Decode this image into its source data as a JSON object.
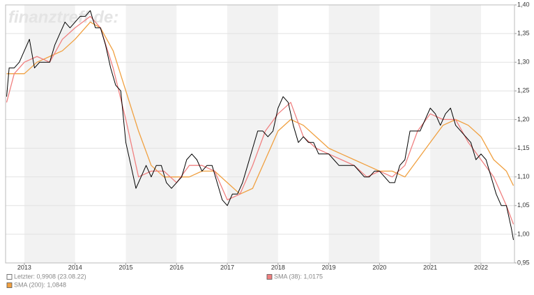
{
  "chart_data": {
    "type": "line",
    "watermark": "finanztreff.de:",
    "xlim": [
      2012.63,
      2022.66
    ],
    "xticks": [
      2013,
      2014,
      2015,
      2016,
      2017,
      2018,
      2019,
      2020,
      2021,
      2022
    ],
    "ylim": [
      0.95,
      1.4
    ],
    "yticks": [
      {
        "value": 0.95,
        "label": "0,95"
      },
      {
        "value": 1.0,
        "label": "1,00"
      },
      {
        "value": 1.05,
        "label": "1,05"
      },
      {
        "value": 1.1,
        "label": "1,10"
      },
      {
        "value": 1.15,
        "label": "1,15"
      },
      {
        "value": 1.2,
        "label": "1,20"
      },
      {
        "value": 1.25,
        "label": "1,25"
      },
      {
        "value": 1.3,
        "label": "1,30"
      },
      {
        "value": 1.35,
        "label": "1,35"
      },
      {
        "value": 1.4,
        "label": "1,40"
      }
    ],
    "grid": true,
    "series": [
      {
        "name": "Letzter: 0,9908 (23.08.22)",
        "color": "#000000",
        "legend_color": "#ffffff",
        "x": [
          2012.65,
          2012.7,
          2012.8,
          2012.9,
          2013.0,
          2013.1,
          2013.2,
          2013.3,
          2013.4,
          2013.5,
          2013.6,
          2013.7,
          2013.8,
          2013.9,
          2014.0,
          2014.1,
          2014.2,
          2014.3,
          2014.4,
          2014.5,
          2014.6,
          2014.7,
          2014.8,
          2014.9,
          2015.0,
          2015.1,
          2015.2,
          2015.3,
          2015.4,
          2015.5,
          2015.6,
          2015.7,
          2015.8,
          2015.9,
          2016.0,
          2016.1,
          2016.2,
          2016.3,
          2016.4,
          2016.5,
          2016.6,
          2016.7,
          2016.8,
          2016.9,
          2017.0,
          2017.1,
          2017.2,
          2017.3,
          2017.4,
          2017.5,
          2017.6,
          2017.7,
          2017.8,
          2017.9,
          2018.0,
          2018.1,
          2018.2,
          2018.3,
          2018.4,
          2018.5,
          2018.6,
          2018.7,
          2018.8,
          2018.9,
          2019.0,
          2019.1,
          2019.2,
          2019.3,
          2019.4,
          2019.5,
          2019.6,
          2019.7,
          2019.8,
          2019.9,
          2020.0,
          2020.1,
          2020.2,
          2020.3,
          2020.4,
          2020.5,
          2020.6,
          2020.7,
          2020.8,
          2020.9,
          2021.0,
          2021.1,
          2021.2,
          2021.3,
          2021.4,
          2021.5,
          2021.6,
          2021.7,
          2021.8,
          2021.9,
          2022.0,
          2022.1,
          2022.2,
          2022.3,
          2022.4,
          2022.5,
          2022.6,
          2022.64
        ],
        "values": [
          1.24,
          1.29,
          1.29,
          1.3,
          1.32,
          1.34,
          1.29,
          1.3,
          1.3,
          1.3,
          1.33,
          1.35,
          1.37,
          1.36,
          1.37,
          1.38,
          1.38,
          1.39,
          1.36,
          1.36,
          1.33,
          1.29,
          1.26,
          1.25,
          1.16,
          1.12,
          1.08,
          1.1,
          1.12,
          1.1,
          1.12,
          1.12,
          1.09,
          1.08,
          1.09,
          1.1,
          1.13,
          1.14,
          1.13,
          1.11,
          1.12,
          1.12,
          1.09,
          1.06,
          1.05,
          1.07,
          1.07,
          1.09,
          1.12,
          1.15,
          1.18,
          1.18,
          1.17,
          1.18,
          1.22,
          1.24,
          1.23,
          1.19,
          1.16,
          1.17,
          1.16,
          1.16,
          1.14,
          1.14,
          1.14,
          1.13,
          1.12,
          1.12,
          1.12,
          1.12,
          1.11,
          1.1,
          1.1,
          1.11,
          1.11,
          1.1,
          1.09,
          1.09,
          1.12,
          1.13,
          1.18,
          1.18,
          1.18,
          1.2,
          1.22,
          1.21,
          1.19,
          1.21,
          1.22,
          1.19,
          1.18,
          1.17,
          1.16,
          1.13,
          1.14,
          1.13,
          1.1,
          1.07,
          1.05,
          1.05,
          1.01,
          0.99
        ]
      },
      {
        "name": "SMA (38): 1,0175",
        "color": "#f08080",
        "x": [
          2012.65,
          2012.8,
          2013.0,
          2013.25,
          2013.5,
          2013.75,
          2014.0,
          2014.3,
          2014.5,
          2014.75,
          2015.0,
          2015.25,
          2015.5,
          2015.75,
          2016.0,
          2016.25,
          2016.5,
          2016.75,
          2017.0,
          2017.25,
          2017.5,
          2017.75,
          2018.0,
          2018.25,
          2018.5,
          2018.75,
          2019.0,
          2019.25,
          2019.5,
          2019.75,
          2020.0,
          2020.25,
          2020.5,
          2020.75,
          2021.0,
          2021.25,
          2021.5,
          2021.75,
          2022.0,
          2022.25,
          2022.5,
          2022.64
        ],
        "values": [
          1.23,
          1.28,
          1.3,
          1.31,
          1.3,
          1.34,
          1.36,
          1.38,
          1.36,
          1.29,
          1.2,
          1.1,
          1.11,
          1.11,
          1.09,
          1.12,
          1.12,
          1.11,
          1.06,
          1.07,
          1.12,
          1.18,
          1.21,
          1.23,
          1.17,
          1.15,
          1.14,
          1.13,
          1.12,
          1.1,
          1.11,
          1.1,
          1.12,
          1.18,
          1.21,
          1.2,
          1.2,
          1.16,
          1.13,
          1.1,
          1.05,
          1.0175
        ]
      },
      {
        "name": "SMA (200): 1,0848",
        "color": "#f0a040",
        "x": [
          2012.65,
          2013.0,
          2013.25,
          2013.5,
          2013.75,
          2014.0,
          2014.3,
          2014.5,
          2014.75,
          2015.0,
          2015.25,
          2015.5,
          2015.75,
          2016.0,
          2016.25,
          2016.5,
          2016.75,
          2017.0,
          2017.25,
          2017.5,
          2017.75,
          2018.0,
          2018.25,
          2018.5,
          2018.75,
          2019.0,
          2019.25,
          2019.5,
          2019.75,
          2020.0,
          2020.25,
          2020.5,
          2020.75,
          2021.0,
          2021.25,
          2021.5,
          2021.75,
          2022.0,
          2022.25,
          2022.5,
          2022.64
        ],
        "values": [
          1.28,
          1.28,
          1.3,
          1.31,
          1.32,
          1.34,
          1.37,
          1.36,
          1.32,
          1.25,
          1.18,
          1.12,
          1.1,
          1.1,
          1.1,
          1.11,
          1.11,
          1.09,
          1.07,
          1.08,
          1.13,
          1.18,
          1.2,
          1.19,
          1.17,
          1.15,
          1.14,
          1.13,
          1.12,
          1.11,
          1.11,
          1.1,
          1.13,
          1.16,
          1.19,
          1.2,
          1.19,
          1.17,
          1.13,
          1.11,
          1.0848
        ]
      }
    ]
  }
}
